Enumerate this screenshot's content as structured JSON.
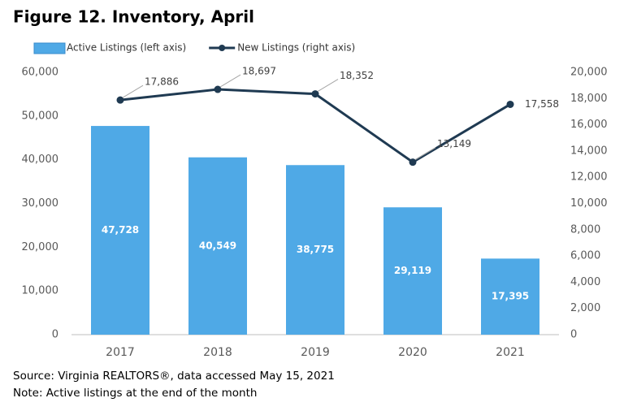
{
  "chart_data": {
    "type": "bar",
    "title": "Figure 12. Inventory, April",
    "categories": [
      "2017",
      "2018",
      "2019",
      "2020",
      "2021"
    ],
    "series": [
      {
        "name": "Active Listings (left axis)",
        "type": "bar",
        "color": "#4fa9e6",
        "axis": "y",
        "values": [
          47728,
          40549,
          38775,
          29119,
          17395
        ],
        "value_labels": [
          "47,728",
          "40,549",
          "38,775",
          "29,119",
          "17,395"
        ]
      },
      {
        "name": "New Listings (right axis)",
        "type": "line",
        "color": "#1f3a52",
        "axis": "y2",
        "values": [
          17886,
          18697,
          18352,
          13149,
          17558
        ],
        "value_labels": [
          "17,886",
          "18,697",
          "18,352",
          "13,149",
          "17,558"
        ]
      }
    ],
    "ylim": [
      0,
      60000
    ],
    "yticks": [
      0,
      {
        "value": 10000,
        "label": "10,000"
      },
      {
        "value": 20000,
        "label": "20,000"
      },
      {
        "value": 30000,
        "label": "30,000"
      },
      {
        "value": 40000,
        "label": "40,000"
      },
      {
        "value": 50000,
        "label": "50,000"
      },
      {
        "value": 60000,
        "label": "60,000"
      }
    ],
    "y2lim": [
      0,
      20000
    ],
    "y2ticks": [
      0,
      {
        "value": 2000,
        "label": "2,000"
      },
      {
        "value": 4000,
        "label": "4,000"
      },
      {
        "value": 6000,
        "label": "6,000"
      },
      {
        "value": 8000,
        "label": "8,000"
      },
      {
        "value": 10000,
        "label": "10,000"
      },
      {
        "value": 12000,
        "label": "12,000"
      },
      {
        "value": 14000,
        "label": "14,000"
      },
      {
        "value": 16000,
        "label": "16,000"
      },
      {
        "value": 18000,
        "label": "18,000"
      },
      {
        "value": 20000,
        "label": "20,000"
      }
    ],
    "grid": false,
    "legend": "top",
    "source": "Source: Virginia REALTORS®, data accessed May 15, 2021",
    "note": "Note: Active listings at the end of the month"
  }
}
